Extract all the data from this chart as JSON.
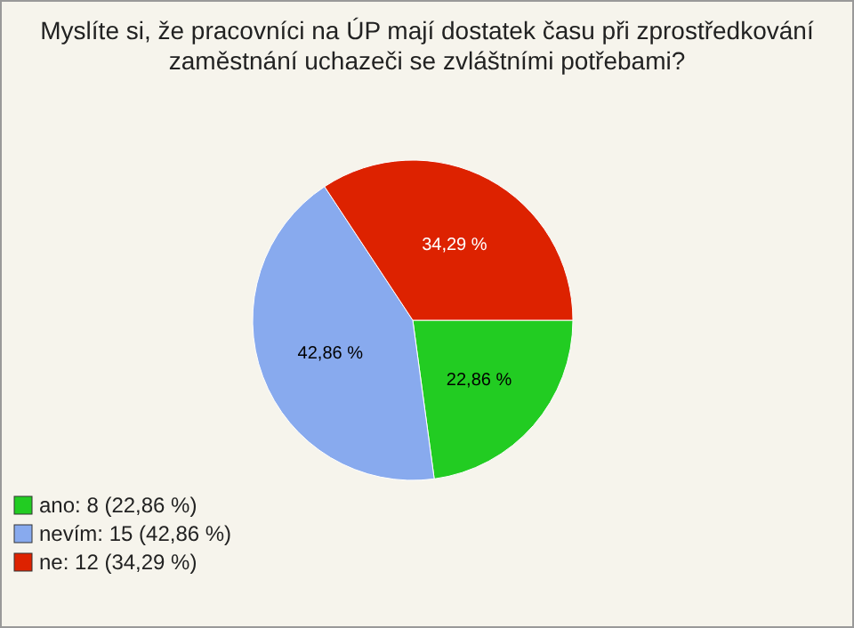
{
  "chart_data": {
    "type": "pie",
    "title": "Myslíte si, že pracovníci na ÚP mají dostatek času při zprostředkování zaměstnání uchazeči se zvláštními potřebami?",
    "categories": [
      "ano: 8 (22,86 %)",
      "nevím: 15 (42,86 %)",
      "ne: 12 (34,29 %)"
    ],
    "values": [
      22.86,
      42.86,
      34.29
    ],
    "value_labels": [
      "22,86 %",
      "42,86 %",
      "34,29 %"
    ],
    "colors": [
      "#22cc22",
      "#88aaee",
      "#dd2200"
    ],
    "legend": "bottom left"
  }
}
